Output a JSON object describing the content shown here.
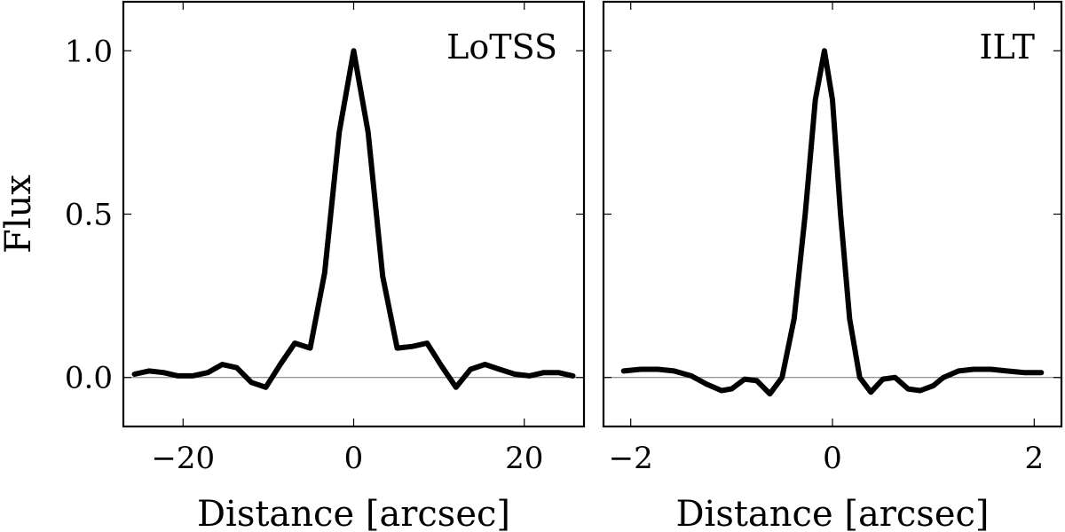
{
  "chart_data": [
    {
      "type": "line",
      "annotation": "LoTSS",
      "xlabel": "Distance [arcsec]",
      "ylabel": "Flux",
      "xlim": [
        -27,
        27
      ],
      "ylim": [
        -0.15,
        1.15
      ],
      "xticks": [
        -20,
        0,
        20
      ],
      "xtick_labels": [
        "−20",
        "0",
        "20"
      ],
      "yticks": [
        0.0,
        0.5,
        1.0
      ],
      "ytick_labels": [
        "0.0",
        "0.5",
        "1.0"
      ],
      "series": [
        {
          "x": [
            -25.7,
            -24,
            -22.3,
            -20.6,
            -18.9,
            -17.1,
            -15.4,
            -13.7,
            -12,
            -10.3,
            -8.6,
            -6.9,
            -5.1,
            -3.4,
            -1.7,
            0,
            1.7,
            3.4,
            5.1,
            6.9,
            8.6,
            10.3,
            12,
            13.7,
            15.4,
            17.1,
            18.9,
            20.6,
            22.3,
            24,
            25.7
          ],
          "y": [
            0.01,
            0.02,
            0.015,
            0.005,
            0.005,
            0.015,
            0.04,
            0.03,
            -0.015,
            -0.03,
            0.04,
            0.105,
            0.09,
            0.32,
            0.75,
            1.0,
            0.75,
            0.31,
            0.09,
            0.095,
            0.105,
            0.035,
            -0.03,
            0.025,
            0.04,
            0.025,
            0.01,
            0.005,
            0.015,
            0.015,
            0.005
          ]
        }
      ]
    },
    {
      "type": "line",
      "annotation": "ILT",
      "xlabel": "Distance [arcsec]",
      "ylabel": "",
      "xlim": [
        -2.27,
        2.27
      ],
      "ylim": [
        -0.15,
        1.15
      ],
      "xticks": [
        -2,
        0,
        2
      ],
      "xtick_labels": [
        "−2",
        "0",
        "2"
      ],
      "yticks": [
        0.0,
        0.5,
        1.0
      ],
      "ytick_labels": [],
      "series": [
        {
          "x": [
            -2.07,
            -1.9,
            -1.73,
            -1.57,
            -1.4,
            -1.25,
            -1.1,
            -1.0,
            -0.87,
            -0.75,
            -0.62,
            -0.5,
            -0.38,
            -0.27,
            -0.17,
            -0.08,
            0,
            0.08,
            0.17,
            0.27,
            0.38,
            0.5,
            0.62,
            0.75,
            0.87,
            1.0,
            1.1,
            1.25,
            1.4,
            1.57,
            1.73,
            1.9,
            2.07
          ],
          "y": [
            0.02,
            0.025,
            0.025,
            0.02,
            0.005,
            -0.02,
            -0.04,
            -0.035,
            -0.005,
            -0.01,
            -0.05,
            0.0,
            0.18,
            0.5,
            0.85,
            1.0,
            0.85,
            0.5,
            0.18,
            0.0,
            -0.045,
            -0.005,
            0.0,
            -0.035,
            -0.04,
            -0.025,
            0.0,
            0.02,
            0.025,
            0.025,
            0.02,
            0.015,
            0.015
          ]
        }
      ]
    }
  ]
}
